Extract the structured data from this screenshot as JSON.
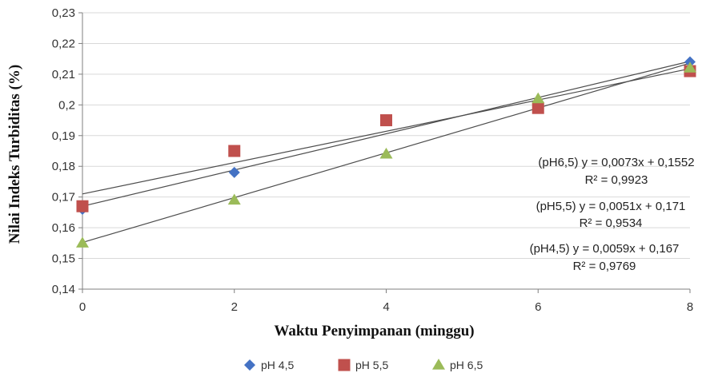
{
  "chart_data": {
    "type": "scatter",
    "xlabel": "Waktu Penyimpanan  (minggu)",
    "ylabel": "Nilai Indeks Turbiditas  (%)",
    "xlim": [
      0,
      8
    ],
    "ylim": [
      0.14,
      0.23
    ],
    "x_ticks": [
      0,
      2,
      4,
      6,
      8
    ],
    "y_ticks": [
      0.14,
      0.15,
      0.16,
      0.17,
      0.18,
      0.19,
      0.2,
      0.21,
      0.22,
      0.23
    ],
    "x_tick_labels": [
      "0",
      "2",
      "4",
      "6",
      "8"
    ],
    "y_tick_labels": [
      "0,14",
      "0,15",
      "0,16",
      "0,17",
      "0,18",
      "0,19",
      "0,2",
      "0,21",
      "0,22",
      "0,23"
    ],
    "grid": "horizontal",
    "legend_position": "bottom",
    "series": [
      {
        "name": "pH 4,5",
        "marker": "diamond",
        "color": "#4472c4",
        "x": [
          0,
          2,
          4,
          6,
          8
        ],
        "y": [
          0.166,
          0.178,
          0.195,
          0.2,
          0.214
        ],
        "trend": {
          "slope": 0.0059,
          "intercept": 0.167
        }
      },
      {
        "name": "pH 5,5",
        "marker": "square",
        "color": "#c0504d",
        "x": [
          0,
          2,
          4,
          6,
          8
        ],
        "y": [
          0.167,
          0.185,
          0.195,
          0.199,
          0.211
        ],
        "trend": {
          "slope": 0.0051,
          "intercept": 0.171
        }
      },
      {
        "name": "pH 6,5",
        "marker": "triangle",
        "color": "#9bbb59",
        "x": [
          0,
          2,
          4,
          6,
          8
        ],
        "y": [
          0.155,
          0.169,
          0.184,
          0.202,
          0.212
        ],
        "trend": {
          "slope": 0.0073,
          "intercept": 0.1552
        }
      }
    ],
    "annotations": [
      "(pH6,5) y = 0,0073x + 0,1552",
      "R² = 0,9923",
      "(pH5,5) y = 0,0051x + 0,171",
      "R² = 0,9534",
      "(pH4,5) y = 0,0059x + 0,167",
      "R² = 0,9769"
    ]
  }
}
